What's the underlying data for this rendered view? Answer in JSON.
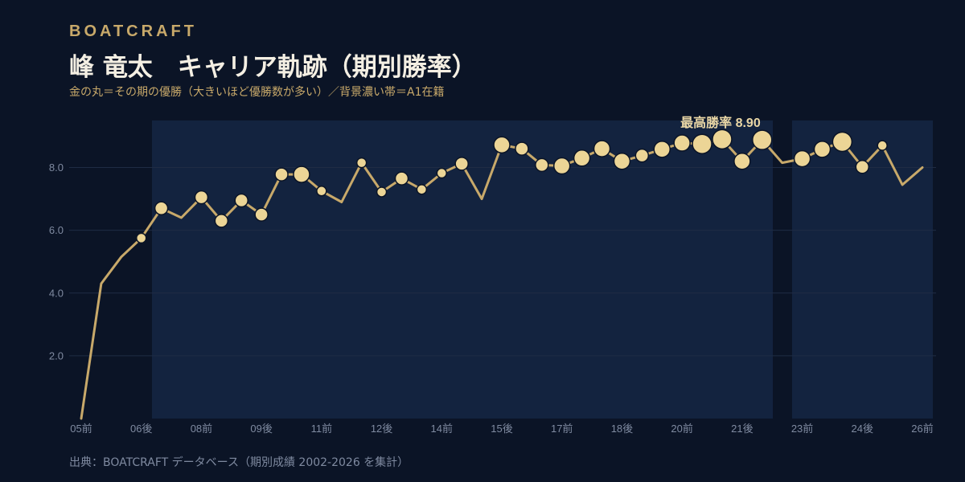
{
  "header": {
    "brand": "BOATCRAFT",
    "title": "峰 竜太　キャリア軌跡（期別勝率）",
    "subtitle": "金の丸＝その期の優勝（大きいほど優勝数が多い）／背景濃い帯＝A1在籍"
  },
  "footer": {
    "source": "出典：BOATCRAFT データベース（期別成績 2002-2026 を集計）"
  },
  "colors": {
    "background": "#0b1426",
    "a1_band": "#13233f",
    "line": "#c8a96a",
    "marker": "#ecd596",
    "marker_stroke": "#0b1426",
    "grid": "#1f2c44",
    "tick": "#7f8aa0",
    "annotation": "#ead7a6"
  },
  "chart_data": {
    "type": "line",
    "ylim": [
      0,
      9.6
    ],
    "yticks": [
      2.0,
      4.0,
      6.0,
      8.0
    ],
    "ytick_labels": [
      "2.0",
      "4.0",
      "6.0",
      "8.0"
    ],
    "xticks": [
      {
        "index": 0,
        "label": "05前"
      },
      {
        "index": 3,
        "label": "06後"
      },
      {
        "index": 6,
        "label": "08前"
      },
      {
        "index": 9,
        "label": "09後"
      },
      {
        "index": 12,
        "label": "11前"
      },
      {
        "index": 15,
        "label": "12後"
      },
      {
        "index": 18,
        "label": "14前"
      },
      {
        "index": 21,
        "label": "15後"
      },
      {
        "index": 24,
        "label": "17前"
      },
      {
        "index": 27,
        "label": "18後"
      },
      {
        "index": 30,
        "label": "20前"
      },
      {
        "index": 33,
        "label": "21後"
      },
      {
        "index": 36,
        "label": "23前"
      },
      {
        "index": 39,
        "label": "24後"
      },
      {
        "index": 42,
        "label": "26前"
      }
    ],
    "series": [
      {
        "values": [
          0.0,
          4.3,
          5.15,
          5.75,
          6.7,
          6.4,
          7.05,
          6.3,
          6.95,
          6.5,
          7.78,
          7.78,
          7.25,
          6.9,
          8.15,
          7.22,
          7.65,
          7.3,
          7.82,
          8.12,
          7.0,
          8.72,
          8.6,
          8.08,
          8.05,
          8.3,
          8.6,
          8.2,
          8.38,
          8.58,
          8.78,
          8.75,
          8.9,
          8.2,
          8.88,
          8.15,
          8.28,
          8.58,
          8.82,
          8.02,
          8.7,
          7.45,
          8.0
        ],
        "wins": [
          0,
          0,
          0,
          1,
          2,
          0,
          2,
          2,
          2,
          2,
          2,
          3,
          1,
          0,
          1,
          1,
          2,
          1,
          1,
          2,
          0,
          3,
          2,
          2,
          3,
          3,
          3,
          3,
          2,
          3,
          3,
          4,
          4,
          3,
          4,
          0,
          3,
          3,
          4,
          2,
          1,
          0,
          0
        ]
      }
    ],
    "a1_periods": [
      [
        3,
        34
      ],
      [
        35.5,
        42.5
      ]
    ],
    "annotations": [
      {
        "text": "最高勝率 8.90",
        "index": 32,
        "value": 8.9
      }
    ]
  }
}
